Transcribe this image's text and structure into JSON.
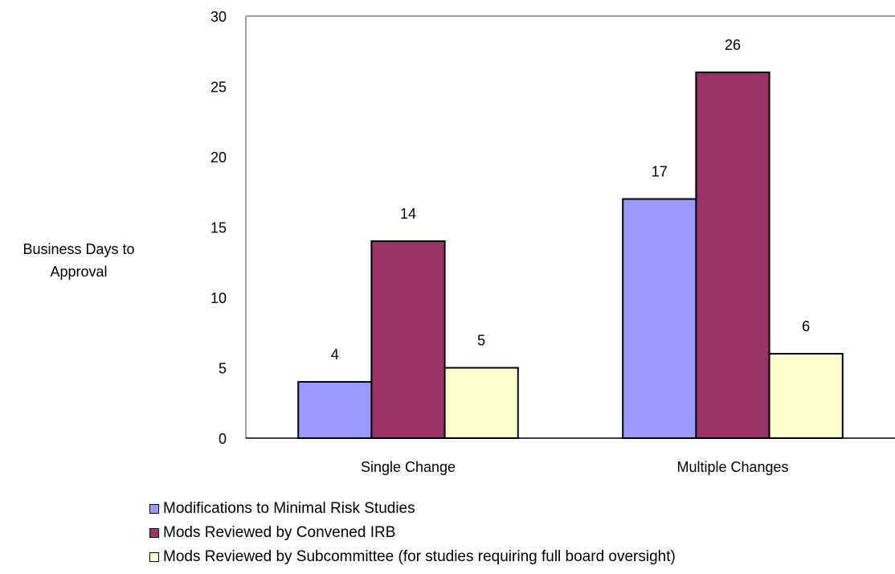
{
  "chart_data": {
    "type": "bar",
    "categories": [
      "Single Change",
      "Multiple Changes"
    ],
    "series": [
      {
        "name": "Modifications to Minimal Risk Studies",
        "values": [
          4,
          17
        ],
        "color": "#9999ff"
      },
      {
        "name": "Mods Reviewed by Convened IRB",
        "values": [
          14,
          26
        ],
        "color": "#993366"
      },
      {
        "name": "Mods Reviewed by Subcommittee (for studies requiring full board oversight)",
        "values": [
          5,
          6
        ],
        "color": "#ffffcc"
      }
    ],
    "ylabel_lines": [
      "Business Days to",
      "Approval"
    ],
    "ylim": [
      0,
      30
    ],
    "yticks": [
      0,
      5,
      10,
      15,
      20,
      25,
      30
    ],
    "grid": false,
    "data_labels": true,
    "legend_position": "bottom"
  }
}
